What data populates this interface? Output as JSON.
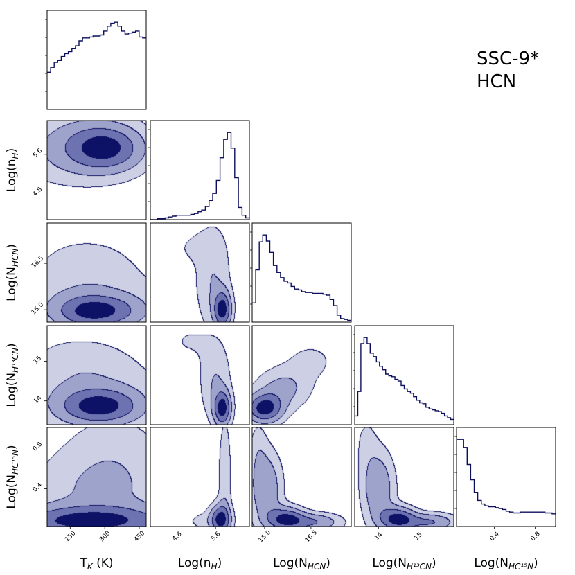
{
  "title_lines": [
    "SSC-9*",
    "HCN"
  ],
  "colors": {
    "line": "#0c0f5e",
    "fill_levels": [
      "#cdd0e4",
      "#9ea3cc",
      "#6d72b0",
      "#0d1266"
    ],
    "frame": "#000000"
  },
  "chart_data": {
    "type": "corner",
    "parameters": [
      {
        "label_base": "T",
        "label_sub": "K",
        "label_suffix": " (K)",
        "range": [
          50,
          480
        ],
        "ticks": [
          150,
          300,
          450
        ],
        "tick_labels": [
          "150",
          "300",
          "450"
        ]
      },
      {
        "label_base": "Log(n",
        "label_sub": "H",
        "label_suffix": ")",
        "range": [
          4.25,
          6.3
        ],
        "ticks": [
          4.8,
          5.6
        ],
        "tick_labels": [
          "4.8",
          "5.6"
        ]
      },
      {
        "label_base": "Log(N",
        "label_sub": "HCN",
        "label_suffix": ")",
        "range": [
          14.6,
          17.8
        ],
        "ticks": [
          15.0,
          16.5
        ],
        "tick_labels": [
          "15.0",
          "16.5"
        ]
      },
      {
        "label_base": "Log(N",
        "label_sub": "H¹³CN",
        "label_suffix": ")",
        "range": [
          13.4,
          15.9
        ],
        "ticks": [
          14,
          15
        ],
        "tick_labels": [
          "14",
          "15"
        ]
      },
      {
        "label_base": "Log(N",
        "label_sub": "HC¹⁵N",
        "label_suffix": ")",
        "range": [
          0.03,
          1.0
        ],
        "ticks": [
          0.4,
          0.8
        ],
        "tick_labels": [
          "0.4",
          "0.8"
        ]
      }
    ],
    "histograms": [
      [
        0.38,
        0.43,
        0.48,
        0.5,
        0.54,
        0.57,
        0.59,
        0.62,
        0.65,
        0.7,
        0.73,
        0.73,
        0.74,
        0.75,
        0.75,
        0.76,
        0.8,
        0.85,
        0.88,
        0.89,
        0.85,
        0.8,
        0.77,
        0.78,
        0.79,
        0.8,
        0.74,
        0.73
      ],
      [
        0.0,
        0.0,
        0.01,
        0.01,
        0.02,
        0.03,
        0.04,
        0.05,
        0.05,
        0.05,
        0.05,
        0.06,
        0.07,
        0.09,
        0.11,
        0.15,
        0.22,
        0.3,
        0.45,
        0.71,
        0.92,
        1.0,
        0.82,
        0.48,
        0.14,
        0.05,
        0.02
      ],
      [
        0.22,
        0.6,
        0.92,
        1.0,
        0.93,
        0.8,
        0.65,
        0.57,
        0.51,
        0.47,
        0.45,
        0.41,
        0.38,
        0.37,
        0.35,
        0.34,
        0.34,
        0.33,
        0.33,
        0.33,
        0.32,
        0.31,
        0.26,
        0.19,
        0.08,
        0.04,
        0.03,
        0.02
      ],
      [
        0.1,
        0.38,
        0.93,
        1.0,
        0.93,
        0.82,
        0.78,
        0.72,
        0.67,
        0.63,
        0.58,
        0.56,
        0.55,
        0.52,
        0.5,
        0.45,
        0.41,
        0.38,
        0.36,
        0.32,
        0.28,
        0.25,
        0.24,
        0.2,
        0.18,
        0.17,
        0.16,
        0.15,
        0.13,
        0.1,
        0.08,
        0.06
      ],
      [
        0.97,
        0.97,
        0.88,
        0.69,
        0.52,
        0.38,
        0.29,
        0.25,
        0.23,
        0.22,
        0.22,
        0.21,
        0.2,
        0.19,
        0.17,
        0.16,
        0.15,
        0.15,
        0.16,
        0.16,
        0.16,
        0.16,
        0.16,
        0.16,
        0.16,
        0.15,
        0.15,
        0.14
      ]
    ],
    "pairs": [
      {
        "row": 1,
        "col": 0,
        "peaks": [
          {
            "x": 255,
            "y": 5.75,
            "w": 95,
            "h": 0.32,
            "a": 0.5
          },
          {
            "x": 355,
            "y": 5.72,
            "w": 95,
            "h": 0.32,
            "a": 0.55
          },
          {
            "x": 180,
            "y": 5.72,
            "w": 180,
            "h": 0.5,
            "a": 0.5
          }
        ]
      },
      {
        "row": 2,
        "col": 0,
        "peaks": [
          {
            "x": 210,
            "y": 14.95,
            "w": 95,
            "h": 0.35,
            "a": 0.65
          },
          {
            "x": 330,
            "y": 14.95,
            "w": 110,
            "h": 0.35,
            "a": 0.65
          },
          {
            "x": 230,
            "y": 15.4,
            "w": 220,
            "h": 0.95,
            "a": 0.4
          },
          {
            "x": 220,
            "y": 16.7,
            "w": 120,
            "h": 0.45,
            "a": 0.15
          }
        ]
      },
      {
        "row": 3,
        "col": 0,
        "peaks": [
          {
            "x": 220,
            "y": 13.85,
            "w": 95,
            "h": 0.3,
            "a": 0.6
          },
          {
            "x": 340,
            "y": 13.85,
            "w": 100,
            "h": 0.3,
            "a": 0.65
          },
          {
            "x": 230,
            "y": 14.2,
            "w": 220,
            "h": 0.7,
            "a": 0.4
          },
          {
            "x": 190,
            "y": 15.1,
            "w": 140,
            "h": 0.4,
            "a": 0.15
          }
        ]
      },
      {
        "row": 4,
        "col": 0,
        "peaks": [
          {
            "x": 230,
            "y": 0.08,
            "w": 260,
            "h": 0.1,
            "a": 0.8
          },
          {
            "x": 280,
            "y": 0.35,
            "w": 210,
            "h": 0.28,
            "a": 0.3
          },
          {
            "x": 340,
            "y": 0.8,
            "w": 160,
            "h": 0.3,
            "a": 0.16
          }
        ]
      },
      {
        "row": 2,
        "col": 1,
        "peaks": [
          {
            "x": 5.75,
            "y": 15.0,
            "w": 0.12,
            "h": 0.4,
            "a": 1.0
          },
          {
            "x": 5.55,
            "y": 16.0,
            "w": 0.25,
            "h": 1.2,
            "a": 0.35
          },
          {
            "x": 5.15,
            "y": 17.0,
            "w": 0.3,
            "h": 0.35,
            "a": 0.15
          }
        ]
      },
      {
        "row": 3,
        "col": 1,
        "peaks": [
          {
            "x": 5.75,
            "y": 13.8,
            "w": 0.12,
            "h": 0.3,
            "a": 1.0
          },
          {
            "x": 5.6,
            "y": 14.5,
            "w": 0.22,
            "h": 0.7,
            "a": 0.35
          },
          {
            "x": 5.05,
            "y": 15.5,
            "w": 0.35,
            "h": 0.35,
            "a": 0.15
          }
        ]
      },
      {
        "row": 4,
        "col": 1,
        "peaks": [
          {
            "x": 5.7,
            "y": 0.1,
            "w": 0.14,
            "h": 0.1,
            "a": 1.0
          },
          {
            "x": 5.8,
            "y": 0.5,
            "w": 0.1,
            "h": 0.45,
            "a": 0.3
          },
          {
            "x": 5.4,
            "y": 0.08,
            "w": 0.35,
            "h": 0.08,
            "a": 0.2
          }
        ]
      },
      {
        "row": 3,
        "col": 2,
        "peaks": [
          {
            "x": 15.0,
            "y": 13.8,
            "w": 0.4,
            "h": 0.25,
            "a": 1.0
          },
          {
            "x": 15.6,
            "y": 14.3,
            "w": 0.6,
            "h": 0.35,
            "a": 0.4
          },
          {
            "x": 16.5,
            "y": 15.0,
            "w": 0.6,
            "h": 0.35,
            "a": 0.18
          }
        ]
      },
      {
        "row": 4,
        "col": 2,
        "peaks": [
          {
            "x": 15.7,
            "y": 0.1,
            "w": 0.4,
            "h": 0.08,
            "a": 0.9
          },
          {
            "x": 15.05,
            "y": 0.4,
            "w": 0.35,
            "h": 0.25,
            "a": 0.6
          },
          {
            "x": 16.6,
            "y": 0.07,
            "w": 0.6,
            "h": 0.06,
            "a": 0.6
          },
          {
            "x": 14.8,
            "y": 0.8,
            "w": 0.2,
            "h": 0.2,
            "a": 0.18
          }
        ]
      },
      {
        "row": 4,
        "col": 3,
        "peaks": [
          {
            "x": 14.5,
            "y": 0.1,
            "w": 0.3,
            "h": 0.08,
            "a": 0.9
          },
          {
            "x": 14.0,
            "y": 0.4,
            "w": 0.28,
            "h": 0.25,
            "a": 0.55
          },
          {
            "x": 15.3,
            "y": 0.07,
            "w": 0.45,
            "h": 0.06,
            "a": 0.6
          },
          {
            "x": 13.7,
            "y": 0.85,
            "w": 0.2,
            "h": 0.2,
            "a": 0.15
          }
        ]
      }
    ],
    "contour_levels": [
      0.12,
      0.3,
      0.55,
      0.82
    ]
  }
}
